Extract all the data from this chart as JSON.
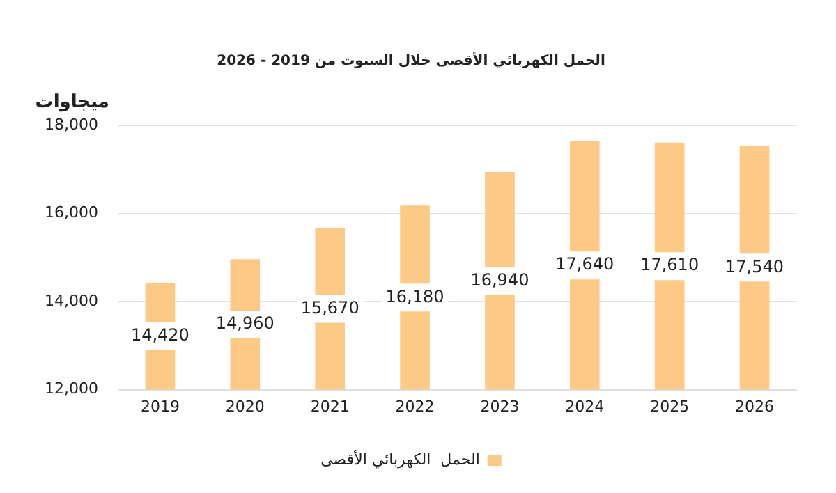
{
  "chart_data": {
    "type": "bar",
    "title": "الحمل الكهربائي الأقصى خلال السنوت من 2019 - 2026",
    "ylabel": "ميجاوات",
    "categories": [
      "2019",
      "2020",
      "2021",
      "2022",
      "2023",
      "2024",
      "2025",
      "2026"
    ],
    "series": [
      {
        "name": "الحمل  الكهربائي الأقصى",
        "color": "#fdc987",
        "values": [
          14420,
          14960,
          15670,
          16180,
          16940,
          17640,
          17610,
          17540
        ],
        "value_labels": [
          "14,420",
          "14,960",
          "15,670",
          "16,180",
          "16,940",
          "17,640",
          "17,610",
          "17,540"
        ]
      }
    ],
    "ylim": [
      12000,
      18000
    ],
    "yticks": [
      {
        "value": 12000,
        "label": "12,000"
      },
      {
        "value": 14000,
        "label": "14,000"
      },
      {
        "value": 16000,
        "label": "16,000"
      },
      {
        "value": 18000,
        "label": "18,000"
      }
    ],
    "grid": "y",
    "legend": "bottom"
  }
}
